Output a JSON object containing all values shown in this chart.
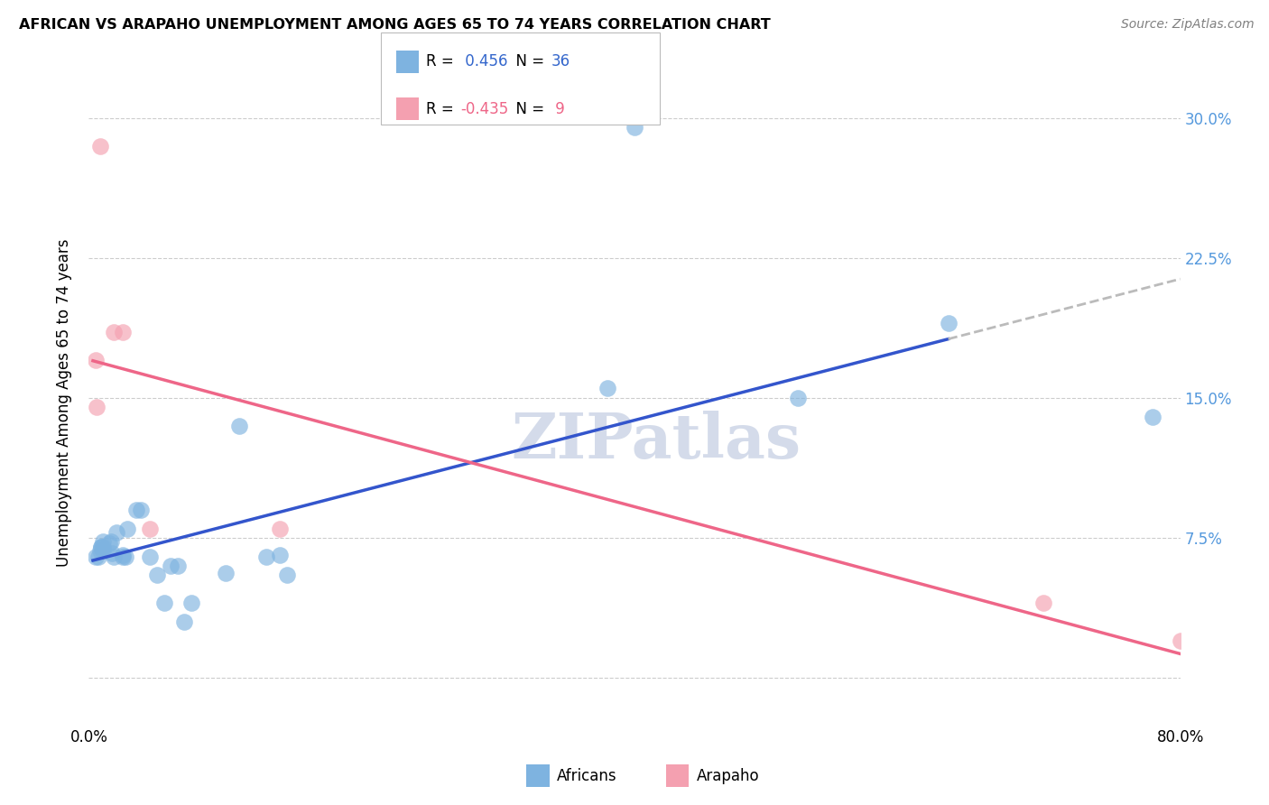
{
  "title": "AFRICAN VS ARAPAHO UNEMPLOYMENT AMONG AGES 65 TO 74 YEARS CORRELATION CHART",
  "source": "Source: ZipAtlas.com",
  "ylabel": "Unemployment Among Ages 65 to 74 years",
  "xlim": [
    0.0,
    0.8
  ],
  "ylim": [
    -0.025,
    0.32
  ],
  "x_ticks": [
    0.0,
    0.1,
    0.2,
    0.3,
    0.4,
    0.5,
    0.6,
    0.7,
    0.8
  ],
  "x_tick_labels": [
    "0.0%",
    "",
    "",
    "",
    "",
    "",
    "",
    "",
    "80.0%"
  ],
  "y_ticks": [
    0.0,
    0.075,
    0.15,
    0.225,
    0.3
  ],
  "y_tick_labels": [
    "",
    "7.5%",
    "15.0%",
    "22.5%",
    "30.0%"
  ],
  "africans_x": [
    0.005,
    0.007,
    0.008,
    0.009,
    0.009,
    0.01,
    0.01,
    0.01,
    0.015,
    0.016,
    0.017,
    0.018,
    0.02,
    0.025,
    0.025,
    0.027,
    0.028,
    0.035,
    0.038,
    0.045,
    0.05,
    0.055,
    0.06,
    0.065,
    0.07,
    0.075,
    0.1,
    0.11,
    0.13,
    0.14,
    0.145,
    0.38,
    0.4,
    0.52,
    0.63,
    0.78
  ],
  "africans_y": [
    0.065,
    0.065,
    0.068,
    0.07,
    0.07,
    0.068,
    0.07,
    0.073,
    0.072,
    0.073,
    0.067,
    0.065,
    0.078,
    0.066,
    0.065,
    0.065,
    0.08,
    0.09,
    0.09,
    0.065,
    0.055,
    0.04,
    0.06,
    0.06,
    0.03,
    0.04,
    0.056,
    0.135,
    0.065,
    0.066,
    0.055,
    0.155,
    0.295,
    0.15,
    0.19,
    0.14
  ],
  "arapaho_x": [
    0.005,
    0.006,
    0.008,
    0.018,
    0.025,
    0.045,
    0.14,
    0.7,
    0.8
  ],
  "arapaho_y": [
    0.17,
    0.145,
    0.285,
    0.185,
    0.185,
    0.08,
    0.08,
    0.04,
    0.02
  ],
  "african_color": "#7EB3E0",
  "arapaho_color": "#F4A0B0",
  "african_line_color": "#3355CC",
  "arapaho_line_color": "#EE6688",
  "dashed_line_color": "#BBBBBB",
  "R_african": 0.456,
  "N_african": 36,
  "R_arapaho": -0.435,
  "N_arapaho": 9,
  "watermark": "ZIPatlas",
  "legend_africans": "Africans",
  "legend_arapaho": "Arapaho",
  "african_line_x_start": 0.003,
  "african_line_x_solid_end": 0.63,
  "african_line_x_dash_end": 0.8
}
